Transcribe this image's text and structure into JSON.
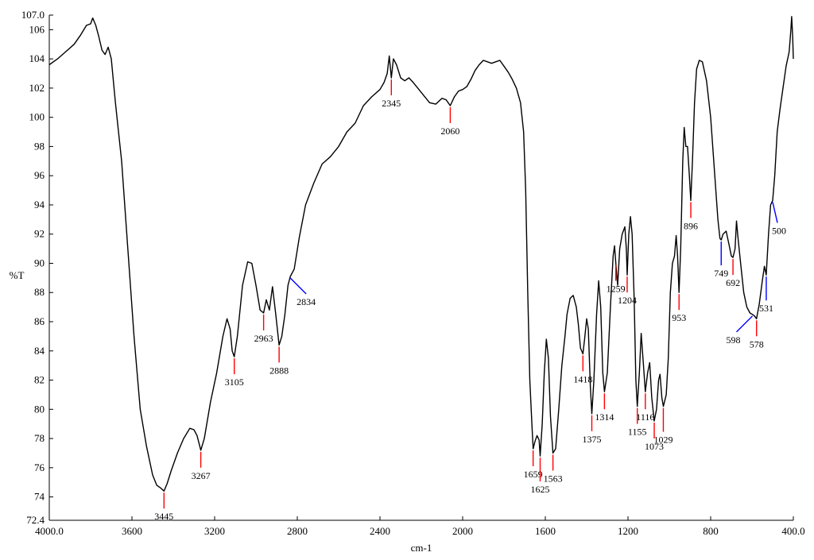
{
  "chart_data": {
    "type": "line",
    "title": "",
    "xlabel": "cm-1",
    "ylabel": "%T",
    "xlim": [
      4000.0,
      400.0
    ],
    "ylim": [
      72.4,
      107.0
    ],
    "x_reversed": true,
    "grid": false,
    "x_ticks": [
      "4000.0",
      "3600",
      "3200",
      "2800",
      "2400",
      "2000",
      "1600",
      "1200",
      "800",
      "400.0"
    ],
    "x_tick_values": [
      4000,
      3600,
      3200,
      2800,
      2400,
      2000,
      1600,
      1200,
      800,
      400
    ],
    "y_ticks": [
      "72.4",
      "74",
      "76",
      "78",
      "80",
      "82",
      "84",
      "86",
      "88",
      "90",
      "92",
      "94",
      "96",
      "98",
      "100",
      "102",
      "104",
      "106",
      "107.0"
    ],
    "y_tick_values": [
      72.4,
      74,
      76,
      78,
      80,
      82,
      84,
      86,
      88,
      90,
      92,
      94,
      96,
      98,
      100,
      102,
      104,
      106,
      107.0
    ],
    "series": [
      {
        "color": "#000000",
        "points": [
          [
            4000,
            103.6
          ],
          [
            3960,
            104.0
          ],
          [
            3920,
            104.5
          ],
          [
            3880,
            105.0
          ],
          [
            3850,
            105.6
          ],
          [
            3820,
            106.3
          ],
          [
            3800,
            106.4
          ],
          [
            3790,
            106.8
          ],
          [
            3775,
            106.3
          ],
          [
            3760,
            105.5
          ],
          [
            3745,
            104.6
          ],
          [
            3730,
            104.3
          ],
          [
            3715,
            104.8
          ],
          [
            3700,
            104.0
          ],
          [
            3680,
            101.0
          ],
          [
            3650,
            97.0
          ],
          [
            3620,
            91.0
          ],
          [
            3590,
            85.0
          ],
          [
            3560,
            80.0
          ],
          [
            3530,
            77.5
          ],
          [
            3500,
            75.5
          ],
          [
            3480,
            74.8
          ],
          [
            3460,
            74.6
          ],
          [
            3445,
            74.4
          ],
          [
            3430,
            74.9
          ],
          [
            3410,
            75.8
          ],
          [
            3380,
            77.0
          ],
          [
            3350,
            78.0
          ],
          [
            3320,
            78.7
          ],
          [
            3300,
            78.6
          ],
          [
            3285,
            78.2
          ],
          [
            3267,
            77.2
          ],
          [
            3250,
            78.0
          ],
          [
            3220,
            80.5
          ],
          [
            3190,
            82.5
          ],
          [
            3160,
            85.0
          ],
          [
            3140,
            86.2
          ],
          [
            3125,
            85.5
          ],
          [
            3115,
            84.0
          ],
          [
            3105,
            83.6
          ],
          [
            3090,
            85.0
          ],
          [
            3065,
            88.5
          ],
          [
            3040,
            90.1
          ],
          [
            3020,
            90.0
          ],
          [
            3000,
            88.5
          ],
          [
            2980,
            86.8
          ],
          [
            2963,
            86.6
          ],
          [
            2950,
            87.5
          ],
          [
            2935,
            86.8
          ],
          [
            2920,
            88.4
          ],
          [
            2905,
            86.6
          ],
          [
            2888,
            84.4
          ],
          [
            2875,
            85.0
          ],
          [
            2860,
            86.5
          ],
          [
            2845,
            88.5
          ],
          [
            2834,
            89.1
          ],
          [
            2815,
            89.6
          ],
          [
            2790,
            91.8
          ],
          [
            2760,
            94.0
          ],
          [
            2720,
            95.5
          ],
          [
            2680,
            96.8
          ],
          [
            2640,
            97.3
          ],
          [
            2600,
            98.0
          ],
          [
            2560,
            99.0
          ],
          [
            2520,
            99.6
          ],
          [
            2480,
            100.8
          ],
          [
            2440,
            101.4
          ],
          [
            2400,
            101.9
          ],
          [
            2380,
            102.4
          ],
          [
            2365,
            103.0
          ],
          [
            2355,
            104.2
          ],
          [
            2345,
            102.7
          ],
          [
            2335,
            104.0
          ],
          [
            2320,
            103.6
          ],
          [
            2300,
            102.7
          ],
          [
            2280,
            102.5
          ],
          [
            2260,
            102.7
          ],
          [
            2240,
            102.4
          ],
          [
            2200,
            101.7
          ],
          [
            2160,
            101.0
          ],
          [
            2130,
            100.9
          ],
          [
            2100,
            101.3
          ],
          [
            2080,
            101.2
          ],
          [
            2060,
            100.8
          ],
          [
            2040,
            101.4
          ],
          [
            2020,
            101.8
          ],
          [
            2000,
            101.9
          ],
          [
            1980,
            102.1
          ],
          [
            1960,
            102.6
          ],
          [
            1940,
            103.2
          ],
          [
            1920,
            103.6
          ],
          [
            1900,
            103.9
          ],
          [
            1880,
            103.8
          ],
          [
            1860,
            103.7
          ],
          [
            1840,
            103.8
          ],
          [
            1820,
            103.9
          ],
          [
            1800,
            103.5
          ],
          [
            1780,
            103.1
          ],
          [
            1760,
            102.6
          ],
          [
            1740,
            102.0
          ],
          [
            1720,
            101.0
          ],
          [
            1705,
            99.0
          ],
          [
            1695,
            95.0
          ],
          [
            1685,
            88.0
          ],
          [
            1675,
            82.0
          ],
          [
            1665,
            79.0
          ],
          [
            1659,
            77.3
          ],
          [
            1650,
            77.8
          ],
          [
            1640,
            78.2
          ],
          [
            1630,
            77.9
          ],
          [
            1625,
            76.8
          ],
          [
            1615,
            79.0
          ],
          [
            1605,
            82.5
          ],
          [
            1595,
            84.8
          ],
          [
            1585,
            83.5
          ],
          [
            1575,
            79.5
          ],
          [
            1563,
            77.0
          ],
          [
            1550,
            77.3
          ],
          [
            1535,
            80.0
          ],
          [
            1520,
            83.0
          ],
          [
            1505,
            85.0
          ],
          [
            1495,
            86.5
          ],
          [
            1480,
            87.6
          ],
          [
            1465,
            87.8
          ],
          [
            1450,
            87.0
          ],
          [
            1440,
            85.8
          ],
          [
            1430,
            84.2
          ],
          [
            1418,
            83.8
          ],
          [
            1410,
            84.8
          ],
          [
            1400,
            86.2
          ],
          [
            1392,
            85.5
          ],
          [
            1382,
            81.5
          ],
          [
            1375,
            79.7
          ],
          [
            1365,
            82.0
          ],
          [
            1352,
            86.5
          ],
          [
            1342,
            88.8
          ],
          [
            1332,
            87.0
          ],
          [
            1322,
            82.5
          ],
          [
            1314,
            81.2
          ],
          [
            1300,
            82.5
          ],
          [
            1285,
            87.0
          ],
          [
            1272,
            90.5
          ],
          [
            1265,
            91.2
          ],
          [
            1259,
            90.0
          ],
          [
            1250,
            88.5
          ],
          [
            1240,
            91.0
          ],
          [
            1228,
            92.0
          ],
          [
            1215,
            92.5
          ],
          [
            1208,
            91.0
          ],
          [
            1204,
            89.2
          ],
          [
            1196,
            92.0
          ],
          [
            1188,
            93.2
          ],
          [
            1180,
            92.0
          ],
          [
            1170,
            87.5
          ],
          [
            1162,
            82.0
          ],
          [
            1155,
            80.2
          ],
          [
            1145,
            82.5
          ],
          [
            1136,
            85.2
          ],
          [
            1125,
            83.0
          ],
          [
            1116,
            81.2
          ],
          [
            1105,
            82.5
          ],
          [
            1095,
            83.2
          ],
          [
            1085,
            80.8
          ],
          [
            1073,
            79.2
          ],
          [
            1062,
            80.0
          ],
          [
            1052,
            82.0
          ],
          [
            1045,
            82.4
          ],
          [
            1036,
            80.8
          ],
          [
            1029,
            80.2
          ],
          [
            1015,
            81.0
          ],
          [
            1005,
            83.5
          ],
          [
            995,
            88.0
          ],
          [
            985,
            90.0
          ],
          [
            975,
            90.5
          ],
          [
            967,
            91.9
          ],
          [
            960,
            90.5
          ],
          [
            953,
            88.0
          ],
          [
            945,
            91.0
          ],
          [
            935,
            97.0
          ],
          [
            928,
            99.3
          ],
          [
            920,
            98.0
          ],
          [
            912,
            98.0
          ],
          [
            903,
            96.0
          ],
          [
            896,
            94.3
          ],
          [
            888,
            97.0
          ],
          [
            878,
            101.0
          ],
          [
            868,
            103.3
          ],
          [
            855,
            103.9
          ],
          [
            840,
            103.8
          ],
          [
            820,
            102.5
          ],
          [
            800,
            100.0
          ],
          [
            780,
            96.0
          ],
          [
            765,
            93.0
          ],
          [
            755,
            91.7
          ],
          [
            749,
            91.6
          ],
          [
            740,
            92.0
          ],
          [
            725,
            92.2
          ],
          [
            710,
            91.2
          ],
          [
            700,
            90.5
          ],
          [
            692,
            90.4
          ],
          [
            682,
            91.0
          ],
          [
            675,
            92.9
          ],
          [
            668,
            91.8
          ],
          [
            655,
            90.0
          ],
          [
            640,
            88.0
          ],
          [
            625,
            87.0
          ],
          [
            610,
            86.6
          ],
          [
            598,
            86.5
          ],
          [
            588,
            86.4
          ],
          [
            578,
            86.2
          ],
          [
            565,
            87.2
          ],
          [
            550,
            88.8
          ],
          [
            540,
            89.8
          ],
          [
            531,
            89.2
          ],
          [
            520,
            92.0
          ],
          [
            510,
            94.0
          ],
          [
            500,
            94.3
          ],
          [
            490,
            96.0
          ],
          [
            478,
            99.0
          ],
          [
            465,
            100.5
          ],
          [
            450,
            102.0
          ],
          [
            435,
            103.5
          ],
          [
            420,
            104.5
          ],
          [
            412,
            106.0
          ],
          [
            408,
            106.9
          ],
          [
            403,
            105.5
          ],
          [
            400,
            104.0
          ]
        ]
      }
    ],
    "annotations": [
      {
        "label": "3445",
        "x": 3445,
        "y": 74.4,
        "color": "#ff0000",
        "dir": "down"
      },
      {
        "label": "3267",
        "x": 3267,
        "y": 77.2,
        "color": "#ff0000",
        "dir": "down"
      },
      {
        "label": "3105",
        "x": 3105,
        "y": 83.6,
        "color": "#ff0000",
        "dir": "down"
      },
      {
        "label": "2963",
        "x": 2963,
        "y": 86.6,
        "color": "#ff0000",
        "dir": "down"
      },
      {
        "label": "2888",
        "x": 2888,
        "y": 84.4,
        "color": "#ff0000",
        "dir": "down"
      },
      {
        "label": "2834",
        "x": 2834,
        "y": 89.1,
        "color": "#0000ff",
        "dir": "diag-right"
      },
      {
        "label": "2345",
        "x": 2345,
        "y": 102.7,
        "color": "#ff0000",
        "dir": "down"
      },
      {
        "label": "2060",
        "x": 2060,
        "y": 100.8,
        "color": "#ff0000",
        "dir": "down"
      },
      {
        "label": "1659",
        "x": 1659,
        "y": 77.3,
        "color": "#ff0000",
        "dir": "down"
      },
      {
        "label": "1625",
        "x": 1625,
        "y": 76.8,
        "color": "#ff0000",
        "dir": "down-long"
      },
      {
        "label": "1563",
        "x": 1563,
        "y": 77.0,
        "color": "#ff0000",
        "dir": "down"
      },
      {
        "label": "1418",
        "x": 1418,
        "y": 83.8,
        "color": "#ff0000",
        "dir": "down"
      },
      {
        "label": "1375",
        "x": 1375,
        "y": 79.7,
        "color": "#ff0000",
        "dir": "down"
      },
      {
        "label": "1314",
        "x": 1314,
        "y": 81.2,
        "color": "#ff0000",
        "dir": "down"
      },
      {
        "label": "1259",
        "x": 1259,
        "y": 90.0,
        "color": "#ff0000",
        "dir": "down"
      },
      {
        "label": "1204",
        "x": 1204,
        "y": 89.2,
        "color": "#ff0000",
        "dir": "down"
      },
      {
        "label": "1155",
        "x": 1155,
        "y": 80.2,
        "color": "#ff0000",
        "dir": "down"
      },
      {
        "label": "1116",
        "x": 1116,
        "y": 81.2,
        "color": "#ff0000",
        "dir": "down"
      },
      {
        "label": "1073",
        "x": 1073,
        "y": 79.2,
        "color": "#ff0000",
        "dir": "down"
      },
      {
        "label": "1029",
        "x": 1029,
        "y": 80.2,
        "color": "#ff0000",
        "dir": "down-long"
      },
      {
        "label": "953",
        "x": 953,
        "y": 88.0,
        "color": "#ff0000",
        "dir": "down"
      },
      {
        "label": "896",
        "x": 896,
        "y": 94.3,
        "color": "#ff0000",
        "dir": "down"
      },
      {
        "label": "749",
        "x": 749,
        "y": 91.6,
        "color": "#0000ff",
        "dir": "down-long"
      },
      {
        "label": "692",
        "x": 692,
        "y": 90.4,
        "color": "#ff0000",
        "dir": "down"
      },
      {
        "label": "598",
        "x": 598,
        "y": 86.5,
        "color": "#0000ff",
        "dir": "diag-left"
      },
      {
        "label": "578",
        "x": 578,
        "y": 86.2,
        "color": "#ff0000",
        "dir": "down"
      },
      {
        "label": "531",
        "x": 531,
        "y": 89.2,
        "color": "#0000ff",
        "dir": "down-long"
      },
      {
        "label": "500",
        "x": 500,
        "y": 94.3,
        "color": "#0000ff",
        "dir": "diag-down"
      }
    ]
  }
}
